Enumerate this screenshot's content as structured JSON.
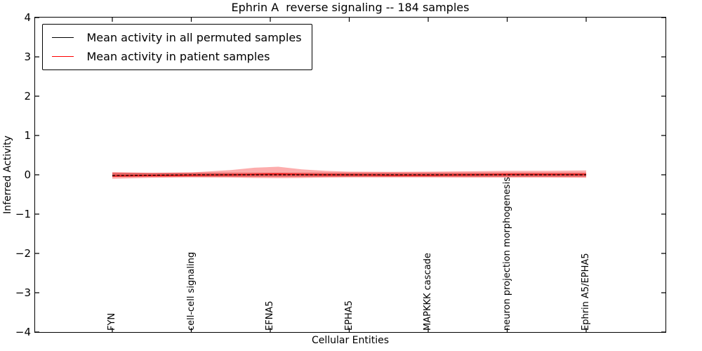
{
  "chart_data": {
    "type": "line",
    "title": "Ephrin A  reverse signaling -- 184 samples",
    "xlabel": "Cellular Entities",
    "ylabel": "Inferred Activity",
    "ylim": [
      -4,
      4
    ],
    "yticks": [
      4,
      3,
      2,
      1,
      0,
      -1,
      -2,
      -3,
      -4
    ],
    "ytick_labels": [
      "4",
      "3",
      "2",
      "1",
      "0",
      "−1",
      "−2",
      "−3",
      "−4"
    ],
    "grid": false,
    "legend_position": "upper left",
    "xtick_positions": [
      0,
      10,
      20,
      30,
      40,
      50,
      60
    ],
    "xtick_labels": [
      "FYN",
      "cell-cell signaling",
      "EFNA5",
      "EPHA5",
      "MAPKKK cascade",
      "neuron projection morphogenesis",
      "Ephrin A5/EPHA5"
    ],
    "x_sample": [
      0,
      5,
      10,
      15,
      18,
      21,
      24,
      27,
      30,
      35,
      40,
      45,
      50,
      55,
      60
    ],
    "series": [
      {
        "name": "Mean activity in all permuted samples",
        "color": "#000000",
        "line_style": "dashed",
        "values": [
          -0.02,
          -0.01,
          0.0,
          0.0,
          0.0,
          0.0,
          0.0,
          0.0,
          0.0,
          0.0,
          0.0,
          0.0,
          0.0,
          0.0,
          0.0
        ],
        "band_upper": [
          0.04,
          0.04,
          0.04,
          0.04,
          0.04,
          0.05,
          0.04,
          0.04,
          0.04,
          0.04,
          0.04,
          0.04,
          0.04,
          0.04,
          0.04
        ],
        "band_lower": [
          -0.05,
          -0.04,
          -0.04,
          -0.04,
          -0.04,
          -0.04,
          -0.04,
          -0.04,
          -0.04,
          -0.04,
          -0.04,
          -0.04,
          -0.04,
          -0.04,
          -0.04
        ],
        "band_color": "rgba(128,128,128,0.45)"
      },
      {
        "name": "Mean activity in patient samples",
        "color": "#ff0000",
        "line_style": "solid",
        "values": [
          -0.03,
          -0.02,
          -0.01,
          0.0,
          0.01,
          0.02,
          0.01,
          0.0,
          0.0,
          -0.01,
          -0.01,
          0.0,
          0.01,
          0.01,
          0.01
        ],
        "band_upper": [
          0.07,
          0.05,
          0.06,
          0.12,
          0.18,
          0.205,
          0.14,
          0.1,
          0.08,
          0.075,
          0.08,
          0.09,
          0.1,
          0.1,
          0.11
        ],
        "band_lower": [
          -0.1,
          -0.075,
          -0.065,
          -0.07,
          -0.08,
          -0.085,
          -0.08,
          -0.07,
          -0.065,
          -0.065,
          -0.065,
          -0.07,
          -0.07,
          -0.07,
          -0.075
        ],
        "band_color": "rgba(250,60,60,0.42)",
        "band_core_color": "rgba(235,30,30,0.38)"
      }
    ]
  }
}
